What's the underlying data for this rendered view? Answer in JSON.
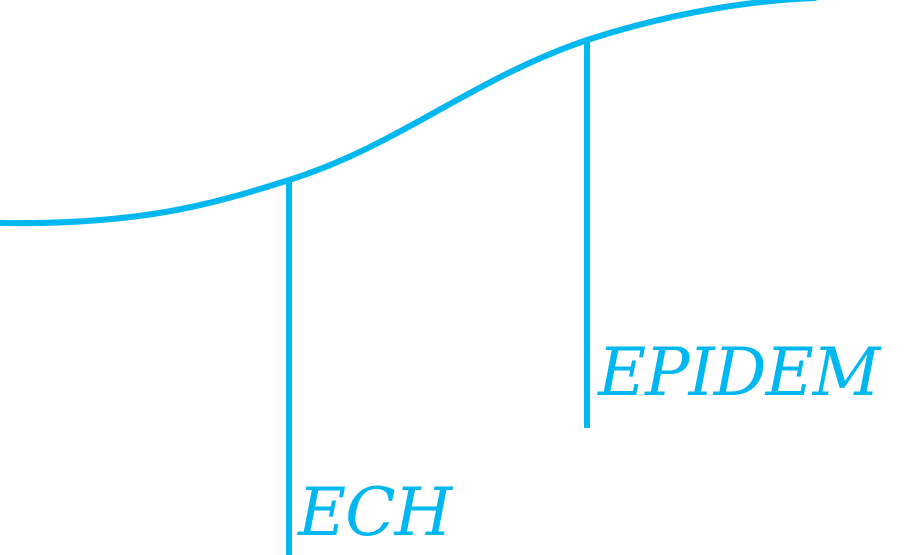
{
  "colors": {
    "line": "#00b7f0",
    "background": "#ffffff"
  },
  "labels": {
    "left": "ECH",
    "right": "EPIDEM"
  }
}
